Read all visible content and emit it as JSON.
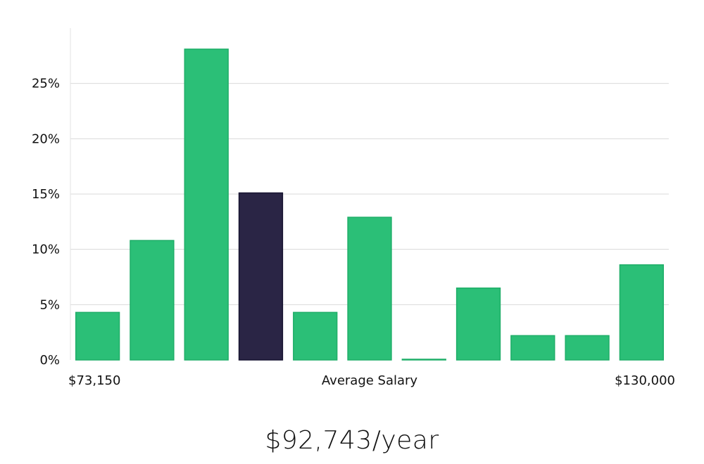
{
  "chart_data": {
    "type": "bar",
    "title": "",
    "xlabel": "Average Salary",
    "x_min_label": "$73,150",
    "x_max_label": "$130,000",
    "ylabel": "",
    "ylim": [
      0,
      30
    ],
    "y_ticks": [
      0,
      5,
      10,
      15,
      20,
      25
    ],
    "y_tick_labels": [
      "0%",
      "5%",
      "10%",
      "15%",
      "20%",
      "25%"
    ],
    "values": [
      4.3,
      10.8,
      28.1,
      15.1,
      4.3,
      12.9,
      0.05,
      6.5,
      2.2,
      2.2,
      8.6
    ],
    "highlight_index": 3,
    "colors": {
      "bar": "#2bbf77",
      "bar_stroke": "#1fae68",
      "highlight": "#2a2545",
      "highlight_stroke": "#161330",
      "grid": "#d9d9d9"
    }
  },
  "summary": {
    "average_salary": "$92,743/year"
  }
}
